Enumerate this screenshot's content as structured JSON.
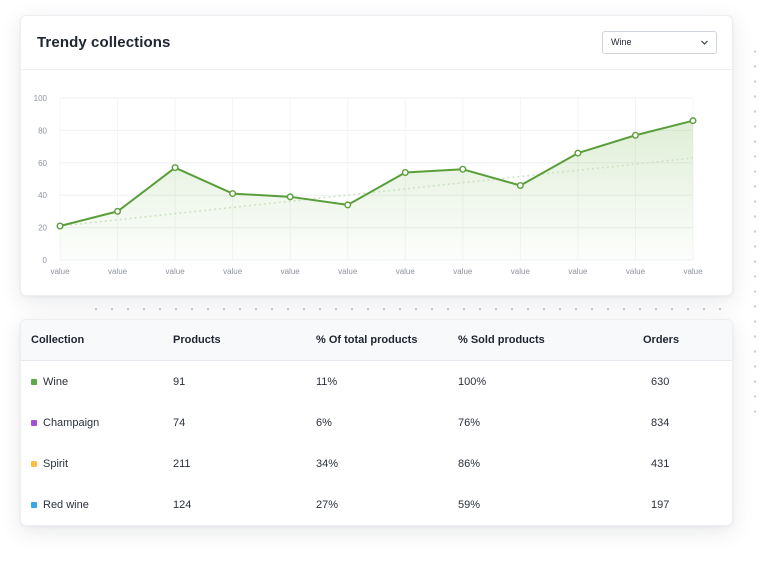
{
  "card": {
    "title": "Trendy collections",
    "select_value": "Wine"
  },
  "chart_data": {
    "type": "line",
    "title": "Trendy collections",
    "categories": [
      "value",
      "value",
      "value",
      "value",
      "value",
      "value",
      "value",
      "value",
      "value",
      "value",
      "value",
      "value"
    ],
    "series": [
      {
        "values": [
          21,
          30,
          57,
          41,
          39,
          34,
          54,
          56,
          46,
          66,
          77,
          86
        ],
        "color": "#5a9e3a"
      }
    ],
    "trend": {
      "start": 21,
      "end": 63,
      "style": "dotted",
      "color": "#cfe3c4"
    },
    "yticks": [
      0,
      20,
      40,
      60,
      80,
      100
    ],
    "ylim": [
      0,
      100
    ],
    "grid": true,
    "area_fill": true
  },
  "table": {
    "headers": [
      "Collection",
      "Products",
      "% Of total products",
      "% Sold products",
      "Orders"
    ],
    "rows": [
      {
        "color": "#5aab46",
        "cells": [
          "Wine",
          "91",
          "11%",
          "100%",
          "630"
        ]
      },
      {
        "color": "#a54ed9",
        "cells": [
          "Champaign",
          "74",
          "6%",
          "76%",
          "834"
        ]
      },
      {
        "color": "#fbbe4a",
        "cells": [
          "Spirit",
          "211",
          "34%",
          "86%",
          "431"
        ]
      },
      {
        "color": "#36a6ea",
        "cells": [
          "Red wine",
          "124",
          "27%",
          "59%",
          "197"
        ]
      }
    ]
  }
}
